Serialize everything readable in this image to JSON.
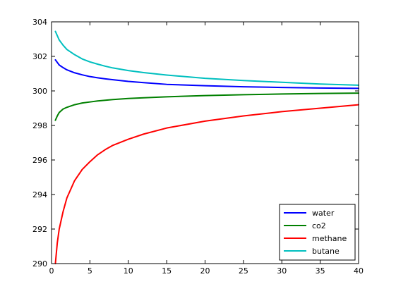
{
  "chart_data": {
    "type": "line",
    "title": "",
    "xlabel": "",
    "ylabel": "",
    "xlim": [
      0,
      40
    ],
    "ylim": [
      290,
      304
    ],
    "xticks": [
      "0",
      "5",
      "10",
      "15",
      "20",
      "25",
      "30",
      "35",
      "40"
    ],
    "yticks": [
      "290",
      "292",
      "294",
      "296",
      "298",
      "300",
      "302",
      "304"
    ],
    "grid": false,
    "legend_position": "bottom-right",
    "x": [
      0.5,
      0.75,
      1,
      1.5,
      2,
      3,
      4,
      5,
      6,
      7,
      8,
      10,
      12,
      15,
      20,
      25,
      30,
      35,
      40
    ],
    "series": [
      {
        "name": "water",
        "color": "#0000ff",
        "values": [
          301.8,
          301.65,
          301.5,
          301.35,
          301.22,
          301.05,
          300.93,
          300.83,
          300.76,
          300.7,
          300.65,
          300.55,
          300.48,
          300.38,
          300.3,
          300.24,
          300.2,
          300.17,
          300.15
        ]
      },
      {
        "name": "co2",
        "color": "#008000",
        "values": [
          298.3,
          298.55,
          298.75,
          298.95,
          299.05,
          299.2,
          299.3,
          299.36,
          299.42,
          299.46,
          299.5,
          299.56,
          299.6,
          299.66,
          299.73,
          299.78,
          299.82,
          299.85,
          299.87
        ]
      },
      {
        "name": "methane",
        "color": "#ff0000",
        "values": [
          290.0,
          291.2,
          292.0,
          293.0,
          293.8,
          294.8,
          295.45,
          295.9,
          296.3,
          296.6,
          296.85,
          297.2,
          297.5,
          297.85,
          298.25,
          298.55,
          298.8,
          299.0,
          299.2
        ]
      },
      {
        "name": "butane",
        "color": "#00bfbf",
        "values": [
          303.45,
          303.2,
          302.95,
          302.65,
          302.4,
          302.1,
          301.85,
          301.68,
          301.55,
          301.43,
          301.33,
          301.18,
          301.06,
          300.92,
          300.73,
          300.6,
          300.5,
          300.4,
          300.33
        ]
      }
    ]
  }
}
